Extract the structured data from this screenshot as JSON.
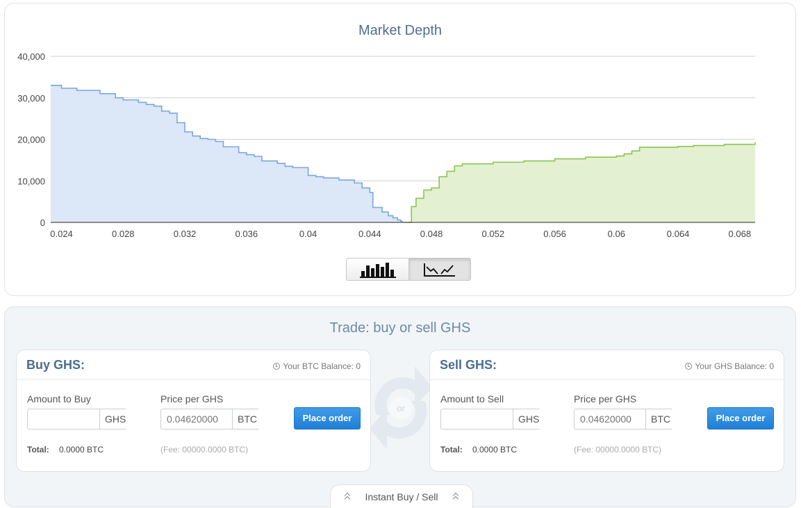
{
  "chart": {
    "title": "Market Depth",
    "y_ticks": [
      "40,000",
      "30,000",
      "20,000",
      "10,000",
      "0"
    ],
    "x_ticks": [
      "0.024",
      "0.028",
      "0.032",
      "0.036",
      "0.04",
      "0.044",
      "0.048",
      "0.052",
      "0.056",
      "0.06",
      "0.064",
      "0.068"
    ],
    "colors": {
      "bid_line": "#7aa6e0",
      "bid_fill": "#dce7f7",
      "ask_line": "#8cc44d",
      "ask_fill": "#e4f0d2",
      "grid": "#cfcfcf"
    },
    "toggle": {
      "bar_icon": "bar-chart-icon",
      "line_icon": "line-chart-icon",
      "active": "line"
    }
  },
  "chart_data": {
    "type": "area",
    "title": "Market Depth",
    "xlim": [
      0.0233,
      0.069
    ],
    "ylim": [
      0,
      40000
    ],
    "grid": true,
    "series": [
      {
        "x": [
          0.0233,
          0.024,
          0.025,
          0.0265,
          0.0275,
          0.028,
          0.029,
          0.0295,
          0.03,
          0.0305,
          0.031,
          0.0315,
          0.032,
          0.0325,
          0.033,
          0.0335,
          0.034,
          0.0345,
          0.0355,
          0.036,
          0.0365,
          0.037,
          0.038,
          0.0385,
          0.039,
          0.04,
          0.0405,
          0.041,
          0.042,
          0.043,
          0.0435,
          0.044,
          0.0442,
          0.0448,
          0.0452,
          0.0455,
          0.0458,
          0.046,
          0.0461
        ],
        "y": [
          33000,
          32300,
          31800,
          31000,
          30000,
          29500,
          28900,
          28400,
          28000,
          26800,
          26300,
          24000,
          21800,
          20800,
          20200,
          20000,
          19500,
          18200,
          16800,
          16300,
          15900,
          14800,
          14200,
          13500,
          13200,
          11300,
          11000,
          10700,
          10200,
          9500,
          8300,
          7200,
          3600,
          2500,
          1600,
          1100,
          600,
          300,
          0
        ],
        "color": "#7aa6e0"
      },
      {
        "x": [
          0.0462,
          0.0467,
          0.047,
          0.0475,
          0.048,
          0.0485,
          0.049,
          0.0495,
          0.05,
          0.052,
          0.054,
          0.056,
          0.058,
          0.06,
          0.0605,
          0.061,
          0.0615,
          0.064,
          0.065,
          0.067,
          0.069
        ],
        "y": [
          0,
          3800,
          5800,
          7800,
          8300,
          11000,
          12300,
          13600,
          14100,
          14500,
          14800,
          15300,
          15700,
          16000,
          16500,
          17200,
          18100,
          18300,
          18500,
          18800,
          19300
        ],
        "color": "#8cc44d"
      }
    ]
  },
  "trade": {
    "title": "Trade: buy or sell GHS",
    "swap_text": "or",
    "buy": {
      "title": "Buy GHS:",
      "balance": "Your BTC Balance: 0",
      "amount_label": "Amount to Buy",
      "amount_value": "",
      "amount_unit": "GHS",
      "price_label": "Price per GHS",
      "price_placeholder": "0.04620000",
      "price_unit": "BTC",
      "button": "Place order",
      "total_label": "Total:",
      "total_value": "0.0000 BTC",
      "fee": "(Fee: 00000.0000 BTC)"
    },
    "sell": {
      "title": "Sell GHS:",
      "balance": "Your GHS Balance: 0",
      "amount_label": "Amount to Sell",
      "amount_value": "",
      "amount_unit": "GHS",
      "price_label": "Price per GHS",
      "price_placeholder": "0.04620000",
      "price_unit": "BTC",
      "button": "Place order",
      "total_label": "Total:",
      "total_value": "0.0000 BTC",
      "fee": "(Fee: 00000.0000 BTC)"
    },
    "instant_label": "Instant Buy / Sell"
  }
}
